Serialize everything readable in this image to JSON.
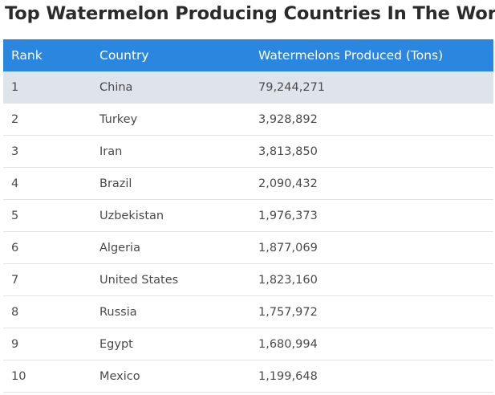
{
  "title": "Top Watermelon Producing Countries In The World",
  "chart_data": {
    "type": "table",
    "title": "Top Watermelon Producing Countries In The World",
    "columns": [
      "Rank",
      "Country",
      "Watermelons Produced (Tons)"
    ],
    "rows": [
      {
        "rank": "1",
        "country": "China",
        "value": "79,244,271"
      },
      {
        "rank": "2",
        "country": "Turkey",
        "value": "3,928,892"
      },
      {
        "rank": "3",
        "country": "Iran",
        "value": "3,813,850"
      },
      {
        "rank": "4",
        "country": "Brazil",
        "value": "2,090,432"
      },
      {
        "rank": "5",
        "country": "Uzbekistan",
        "value": "1,976,373"
      },
      {
        "rank": "6",
        "country": "Algeria",
        "value": "1,877,069"
      },
      {
        "rank": "7",
        "country": "United States",
        "value": "1,823,160"
      },
      {
        "rank": "8",
        "country": "Russia",
        "value": "1,757,972"
      },
      {
        "rank": "9",
        "country": "Egypt",
        "value": "1,680,994"
      },
      {
        "rank": "10",
        "country": "Mexico",
        "value": "1,199,648"
      }
    ],
    "highlighted_row": 0
  },
  "colors": {
    "header_bg": "#2b86df",
    "header_text": "#ffffff",
    "highlight_row": "#dfe3ea"
  }
}
